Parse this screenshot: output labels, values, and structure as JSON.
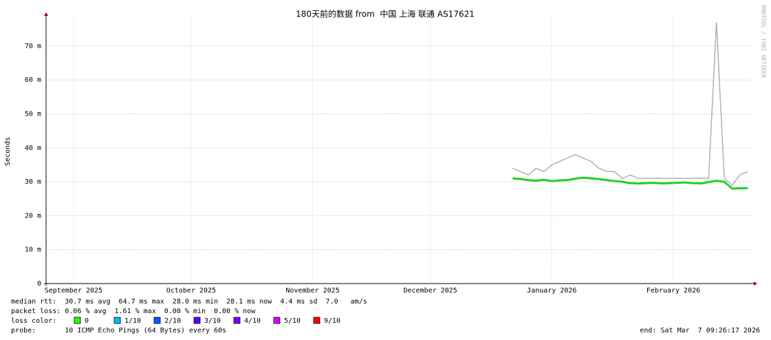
{
  "chart_data": {
    "type": "line",
    "title": "180天前的数据 from  中国 上海 联通 AS17621",
    "y_label": "Seconds",
    "side_text": "RRDTOOL / TOBI OETIKER",
    "xlim": [
      0,
      180
    ],
    "xticks": [
      {
        "value": 7,
        "label": "September 2025"
      },
      {
        "value": 37,
        "label": "October 2025"
      },
      {
        "value": 68,
        "label": "November 2025"
      },
      {
        "value": 98,
        "label": "December 2025"
      },
      {
        "value": 129,
        "label": "January 2026"
      },
      {
        "value": 160,
        "label": "February 2026"
      }
    ],
    "ylim": [
      0,
      78.5
    ],
    "yticks": [
      0,
      {
        "value": 10,
        "label": "10 m"
      },
      {
        "value": 20,
        "label": "20 m"
      },
      {
        "value": 30,
        "label": "30 m"
      },
      {
        "value": 40,
        "label": "40 m"
      },
      {
        "value": 50,
        "label": "50 m"
      },
      {
        "value": 60,
        "label": "60 m"
      },
      {
        "value": 70,
        "label": "70 m"
      }
    ],
    "grid": true,
    "x": [
      119,
      121,
      123,
      125,
      127,
      129,
      131,
      133,
      135,
      137,
      139,
      141,
      143,
      145,
      147,
      149,
      151,
      153,
      155,
      157,
      159,
      161,
      163,
      165,
      167,
      169,
      171,
      173,
      175,
      177,
      179
    ],
    "series": [
      {
        "color": "#b0b0b0",
        "values": [
          34,
          33,
          32,
          34,
          33,
          35,
          36,
          37,
          38,
          37,
          36,
          34,
          33,
          33,
          31,
          32,
          31,
          31,
          31,
          31,
          31,
          31,
          31,
          31,
          31,
          31,
          77,
          31,
          29,
          32,
          33
        ]
      },
      {
        "color": "#20d020",
        "values": [
          31,
          30.8,
          30.5,
          30.3,
          30.6,
          30.2,
          30.4,
          30.5,
          30.9,
          31.2,
          31,
          30.8,
          30.5,
          30.2,
          30,
          29.6,
          29.5,
          29.6,
          29.7,
          29.5,
          29.6,
          29.7,
          29.8,
          29.6,
          29.5,
          29.9,
          30.3,
          30,
          28,
          28.1,
          28.1
        ]
      }
    ],
    "footer": {
      "median": "median rtt:  30.7 ms avg  64.7 ms max  28.0 ms min  28.1 ms now  4.4 ms sd  7.0   am/s",
      "loss": "packet loss: 0.06 % avg  1.61 % max  0.00 % min  0.00 % now",
      "loss_color_label": "loss color:",
      "loss_colors": [
        {
          "label": "0",
          "color": "#26ff00"
        },
        {
          "label": "1/10",
          "color": "#00b8ff"
        },
        {
          "label": "2/10",
          "color": "#0059ff"
        },
        {
          "label": "3/10",
          "color": "#5e00ff"
        },
        {
          "label": "4/10",
          "color": "#7e00ff"
        },
        {
          "label": "5/10",
          "color": "#dd00ff"
        },
        {
          "label": "9/10",
          "color": "#ff0000"
        }
      ],
      "probe": "probe:       10 ICMP Echo Pings (64 Bytes) every 60s",
      "end": "end: Sat Mar  7 09:26:17 2026"
    }
  }
}
